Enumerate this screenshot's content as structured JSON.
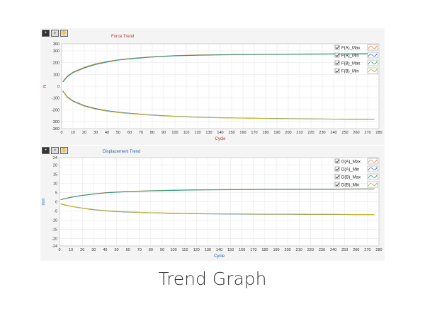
{
  "caption": "Trend Graph",
  "toolbar_icons": [
    "plus-cursor-icon",
    "zoom-icon",
    "pan-hand-icon"
  ],
  "chart_data": [
    {
      "type": "line",
      "title": "Force Trend",
      "title_color": "#b03a2e",
      "xlabel": "Cycle",
      "ylabel": "N",
      "label_color": "#b03a2e",
      "xlim": [
        0,
        280
      ],
      "ylim": [
        -360,
        360
      ],
      "xticks": [
        0,
        10,
        20,
        30,
        40,
        50,
        60,
        70,
        80,
        90,
        100,
        110,
        120,
        130,
        140,
        150,
        160,
        170,
        180,
        190,
        200,
        210,
        220,
        230,
        240,
        250,
        260,
        270,
        280
      ],
      "yticks": [
        -360,
        -300,
        -200,
        -100,
        0,
        100,
        200,
        300,
        360
      ],
      "grid": true,
      "legend_position": "top-right",
      "series": [
        {
          "name": "F(A)_Max",
          "color": "#e8864b",
          "x": [
            1,
            5,
            10,
            20,
            30,
            40,
            50,
            60,
            80,
            100,
            120,
            140,
            160,
            180,
            200,
            220,
            240,
            260,
            276
          ],
          "y": [
            40,
            85,
            120,
            160,
            190,
            210,
            225,
            235,
            250,
            260,
            265,
            268,
            270,
            272,
            273,
            274,
            275,
            276,
            277
          ]
        },
        {
          "name": "F(A)_Min",
          "color": "#2f6fb5",
          "x": [
            1,
            5,
            10,
            20,
            30,
            40,
            50,
            60,
            80,
            100,
            120,
            140,
            160,
            180,
            200,
            220,
            240,
            260,
            276
          ],
          "y": [
            -40,
            -90,
            -125,
            -165,
            -190,
            -208,
            -220,
            -230,
            -245,
            -255,
            -262,
            -267,
            -270,
            -273,
            -275,
            -277,
            -279,
            -280,
            -281
          ]
        },
        {
          "name": "F(B)_Max",
          "color": "#2e9b80",
          "x": [
            1,
            5,
            10,
            20,
            30,
            40,
            50,
            60,
            80,
            100,
            120,
            140,
            160,
            180,
            200,
            220,
            240,
            260,
            276
          ],
          "y": [
            35,
            80,
            115,
            155,
            185,
            205,
            222,
            232,
            248,
            258,
            263,
            266,
            268,
            270,
            271,
            272,
            273,
            274,
            275
          ]
        },
        {
          "name": "F(B)_Min",
          "color": "#c8b832",
          "x": [
            1,
            5,
            10,
            20,
            30,
            40,
            50,
            60,
            80,
            100,
            120,
            140,
            160,
            180,
            200,
            220,
            240,
            260,
            276
          ],
          "y": [
            -45,
            -95,
            -130,
            -170,
            -195,
            -212,
            -224,
            -233,
            -247,
            -257,
            -264,
            -268,
            -271,
            -274,
            -276,
            -278,
            -280,
            -281,
            -282
          ]
        }
      ]
    },
    {
      "type": "line",
      "title": "Displacement Trend",
      "title_color": "#2f5fa8",
      "xlabel": "Cycle",
      "ylabel": "mm",
      "label_color": "#2f5fa8",
      "xlim": [
        0,
        280
      ],
      "ylim": [
        -24,
        24
      ],
      "xticks": [
        0,
        10,
        20,
        30,
        40,
        50,
        60,
        70,
        80,
        90,
        100,
        110,
        120,
        130,
        140,
        150,
        160,
        170,
        180,
        190,
        200,
        210,
        220,
        230,
        240,
        250,
        260,
        270,
        280
      ],
      "yticks": [
        -24,
        -20,
        -15,
        -10,
        -5,
        0,
        5,
        10,
        15,
        20,
        24
      ],
      "grid": true,
      "legend_position": "top-right",
      "series": [
        {
          "name": "D(A)_Max",
          "color": "#e8864b",
          "x": [
            1,
            5,
            10,
            20,
            30,
            40,
            50,
            60,
            80,
            100,
            120,
            140,
            160,
            180,
            200,
            220,
            240,
            260,
            276
          ],
          "y": [
            1.2,
            1.8,
            2.5,
            3.5,
            4.3,
            4.9,
            5.3,
            5.6,
            6.0,
            6.3,
            6.5,
            6.6,
            6.7,
            6.8,
            6.8,
            6.9,
            6.9,
            7.0,
            7.0
          ]
        },
        {
          "name": "D(A)_Min",
          "color": "#2f6fb5",
          "x": [
            1,
            5,
            10,
            20,
            30,
            40,
            50,
            60,
            80,
            100,
            120,
            140,
            160,
            180,
            200,
            220,
            240,
            260,
            276
          ],
          "y": [
            -1.2,
            -1.8,
            -2.5,
            -3.5,
            -4.3,
            -4.9,
            -5.3,
            -5.6,
            -6.0,
            -6.3,
            -6.5,
            -6.6,
            -6.7,
            -6.8,
            -6.8,
            -6.9,
            -6.9,
            -7.0,
            -7.0
          ]
        },
        {
          "name": "D(B)_Max",
          "color": "#2e9b80",
          "x": [
            1,
            5,
            10,
            20,
            30,
            40,
            50,
            60,
            80,
            100,
            120,
            140,
            160,
            180,
            200,
            220,
            240,
            260,
            276
          ],
          "y": [
            1.1,
            1.7,
            2.4,
            3.4,
            4.2,
            4.8,
            5.2,
            5.5,
            5.9,
            6.2,
            6.4,
            6.5,
            6.6,
            6.7,
            6.7,
            6.8,
            6.8,
            6.9,
            6.9
          ]
        },
        {
          "name": "D(B)_Min",
          "color": "#c8b832",
          "x": [
            1,
            5,
            10,
            20,
            30,
            40,
            50,
            60,
            80,
            100,
            120,
            140,
            160,
            180,
            200,
            220,
            240,
            260,
            276
          ],
          "y": [
            -1.1,
            -1.7,
            -2.4,
            -3.4,
            -4.2,
            -4.8,
            -5.2,
            -5.5,
            -5.9,
            -6.2,
            -6.4,
            -6.5,
            -6.6,
            -6.7,
            -6.7,
            -6.8,
            -6.8,
            -6.9,
            -6.9
          ]
        }
      ]
    }
  ]
}
